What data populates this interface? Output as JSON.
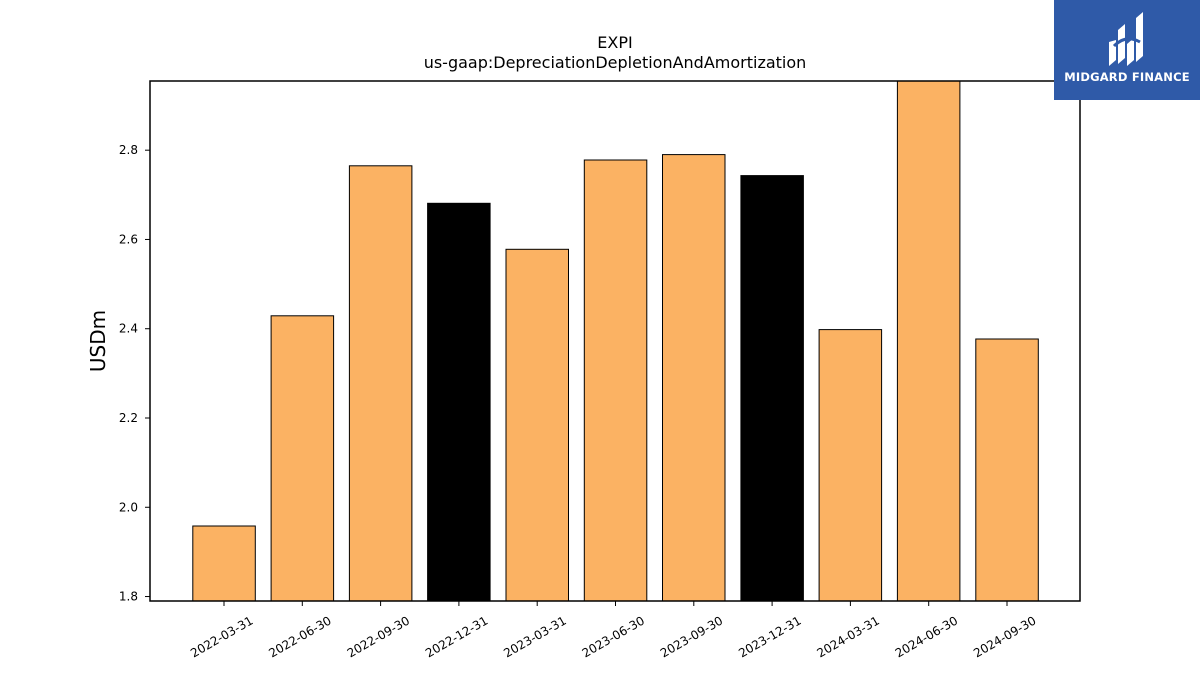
{
  "chart_data": {
    "type": "bar",
    "title": "EXPI",
    "subtitle": "us-gaap:DepreciationDepletionAndAmortization",
    "xlabel": "",
    "ylabel": "USDm",
    "ylim": [
      1.79,
      2.955
    ],
    "yticks": [
      "1.8",
      "2.0",
      "2.2",
      "2.4",
      "2.6",
      "2.8"
    ],
    "grid": false,
    "categories": [
      "2022-03-31",
      "2022-06-30",
      "2022-09-30",
      "2022-12-31",
      "2023-03-31",
      "2023-06-30",
      "2023-09-30",
      "2023-12-31",
      "2024-03-31",
      "2024-06-30",
      "2024-09-30"
    ],
    "values": [
      1.958,
      2.429,
      2.765,
      2.681,
      2.578,
      2.778,
      2.79,
      2.743,
      2.398,
      2.96,
      2.377
    ],
    "bar_colors": [
      "#fbb263",
      "#fbb263",
      "#fbb263",
      "#000000",
      "#fbb263",
      "#fbb263",
      "#fbb263",
      "#000000",
      "#fbb263",
      "#fbb263",
      "#fbb263"
    ]
  },
  "logo": {
    "name": "MIDGARD FINANCE",
    "color": "#2f5aa8"
  }
}
